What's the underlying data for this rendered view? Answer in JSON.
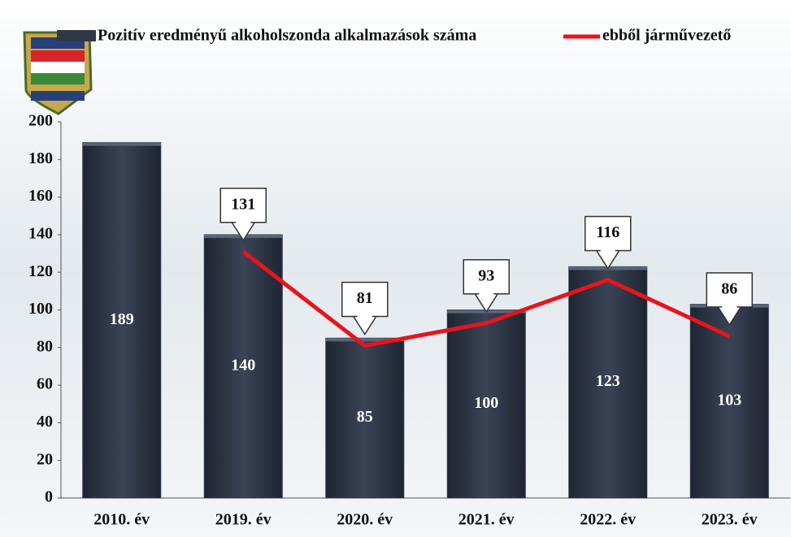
{
  "chart_data": {
    "type": "bar",
    "categories": [
      "2010. év",
      "2019. év",
      "2020. év",
      "2021. év",
      "2022. év",
      "2023. év"
    ],
    "series": [
      {
        "name": "Pozitív eredményű alkoholszonda alkalmazások száma",
        "type": "bar",
        "color": "#2f3848",
        "values": [
          189,
          140,
          85,
          100,
          123,
          103
        ]
      },
      {
        "name": "ebből járművezető",
        "type": "line",
        "color": "#e8141c",
        "values": [
          null,
          131,
          81,
          93,
          116,
          86
        ]
      }
    ],
    "ylim": [
      0,
      200
    ],
    "yticks": [
      0,
      20,
      40,
      60,
      80,
      100,
      120,
      140,
      160,
      180,
      200
    ],
    "grid": false
  }
}
